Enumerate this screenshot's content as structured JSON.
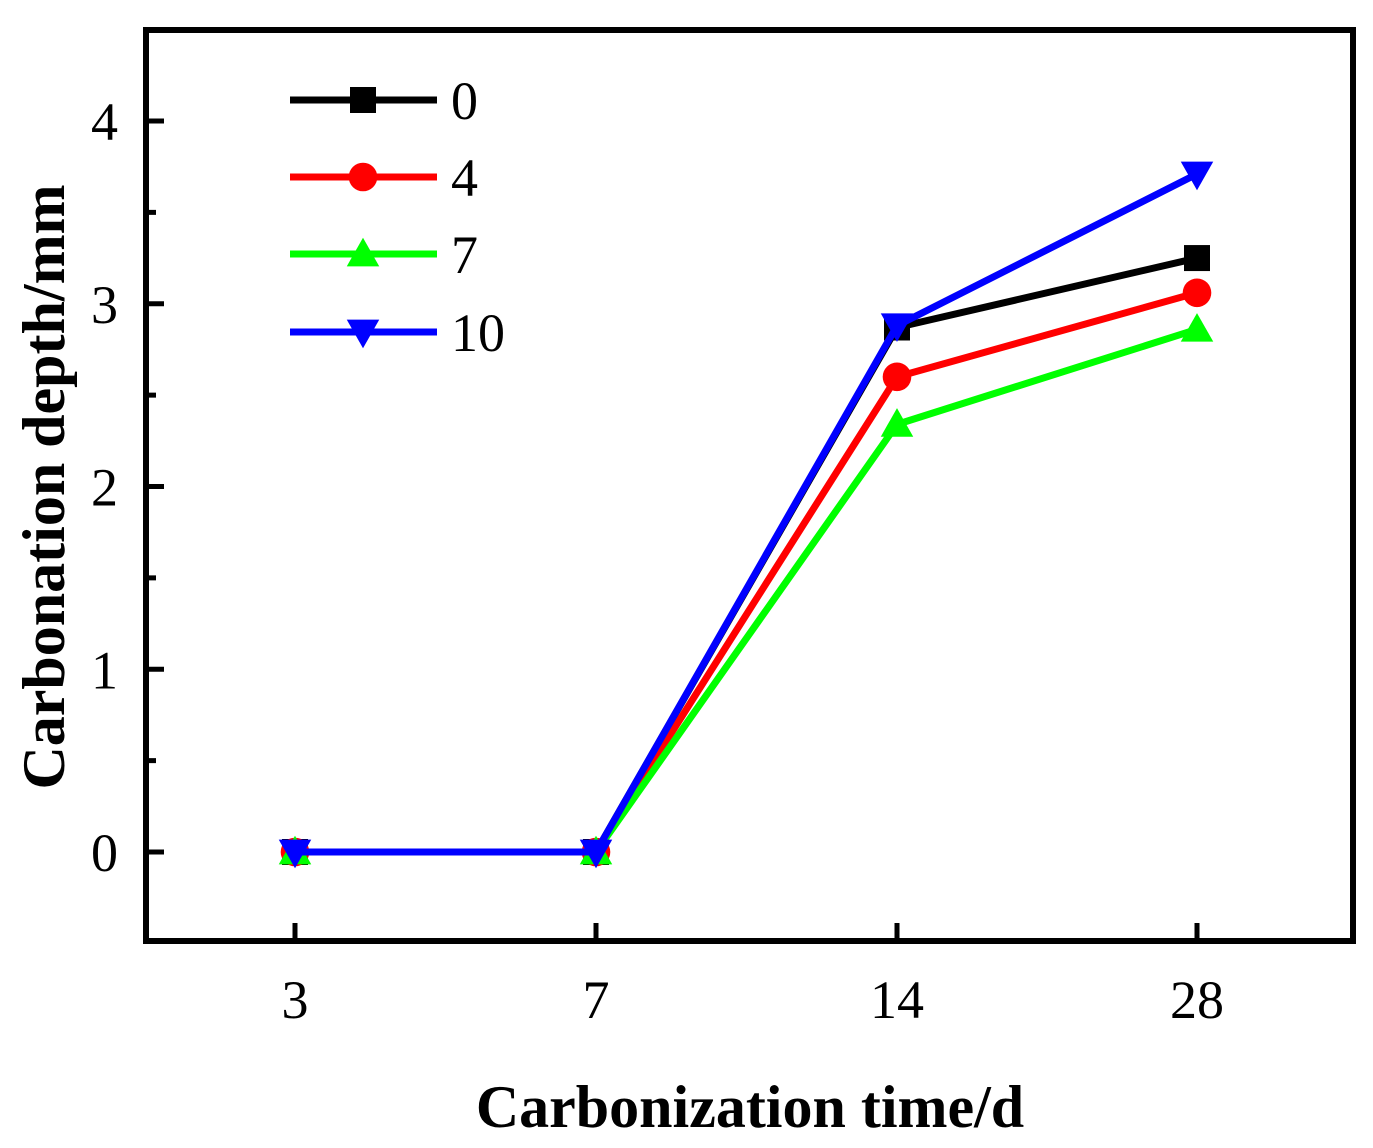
{
  "chart_data": {
    "type": "line",
    "title": "",
    "xlabel": "Carbonization time/d",
    "ylabel": "Carbonation depth/mm",
    "categories": [
      "3",
      "7",
      "14",
      "28"
    ],
    "ylim": [
      -0.5,
      4.5
    ],
    "yticks": [
      0,
      1,
      2,
      3,
      4
    ],
    "grid": false,
    "legend_position": "top-left",
    "series": [
      {
        "name": "0",
        "values": [
          0,
          0,
          2.87,
          3.25
        ],
        "color": "#000000",
        "marker": "square"
      },
      {
        "name": "4",
        "values": [
          0,
          0,
          2.6,
          3.06
        ],
        "color": "#ff0000",
        "marker": "circle"
      },
      {
        "name": "7",
        "values": [
          0,
          0,
          2.34,
          2.86
        ],
        "color": "#00ff00",
        "marker": "triangle-up"
      },
      {
        "name": "10",
        "values": [
          0,
          0,
          2.88,
          3.71
        ],
        "color": "#0000ff",
        "marker": "triangle-down"
      }
    ]
  }
}
